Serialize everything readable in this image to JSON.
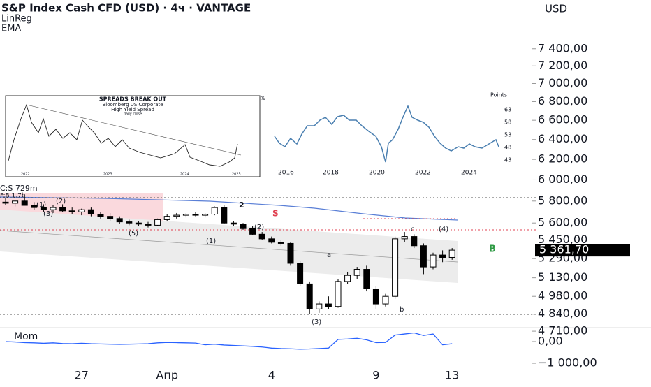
{
  "chart_data": {
    "type": "candlestick",
    "title": "S&P Index Cash CFD (USD) · 4ч · VANTAGE",
    "indicators": [
      "LinReg",
      "EMA"
    ],
    "currency": "USD",
    "log_scale": true,
    "categories": [
      null,
      null,
      null,
      null,
      null,
      null,
      null,
      null,
      "27",
      null,
      null,
      null,
      null,
      null,
      null,
      null,
      null,
      "Апр",
      null,
      null,
      null,
      null,
      null,
      null,
      null,
      null,
      null,
      null,
      "4",
      null,
      null,
      null,
      null,
      null,
      null,
      null,
      null,
      null,
      null,
      "9",
      null,
      null,
      null,
      null,
      null,
      null,
      null,
      "13"
    ],
    "open": [
      5790,
      5780,
      5800,
      5760,
      5740,
      5720,
      5740,
      5710,
      5700,
      5720,
      5680,
      5660,
      5640,
      5610,
      5600,
      5590,
      5580,
      5630,
      5660,
      5670,
      5680,
      5670,
      5680,
      5740,
      5600,
      5590,
      5550,
      5500,
      5460,
      5430,
      5420,
      5250,
      5080,
      4880,
      4920,
      4900,
      5100,
      5150,
      5200,
      5040,
      4920,
      4980,
      5460,
      5480,
      5400,
      5220,
      5320,
      5300
    ],
    "high": [
      5830,
      5810,
      5840,
      5790,
      5770,
      5760,
      5770,
      5740,
      5730,
      5740,
      5700,
      5690,
      5660,
      5630,
      5620,
      5610,
      5640,
      5680,
      5690,
      5690,
      5700,
      5690,
      5750,
      5760,
      5620,
      5600,
      5570,
      5520,
      5480,
      5450,
      5430,
      5270,
      5100,
      4940,
      4980,
      5120,
      5180,
      5220,
      5230,
      5060,
      5000,
      5480,
      5520,
      5500,
      5420,
      5340,
      5360,
      5380
    ],
    "low": [
      5760,
      5750,
      5770,
      5720,
      5700,
      5690,
      5700,
      5680,
      5670,
      5660,
      5640,
      5620,
      5590,
      5580,
      5570,
      5560,
      5570,
      5620,
      5640,
      5650,
      5660,
      5650,
      5670,
      5590,
      5570,
      5540,
      5490,
      5450,
      5420,
      5400,
      5230,
      5060,
      4840,
      4850,
      4880,
      4890,
      5080,
      5120,
      5020,
      4880,
      4900,
      4960,
      5430,
      5380,
      5160,
      5200,
      5260,
      5280
    ],
    "close": [
      5780,
      5800,
      5760,
      5740,
      5720,
      5740,
      5710,
      5700,
      5720,
      5680,
      5660,
      5640,
      5610,
      5600,
      5590,
      5580,
      5630,
      5660,
      5670,
      5680,
      5670,
      5680,
      5740,
      5600,
      5590,
      5550,
      5500,
      5460,
      5430,
      5420,
      5250,
      5080,
      4880,
      4920,
      4900,
      5100,
      5150,
      5200,
      5040,
      4920,
      4980,
      5460,
      5480,
      5400,
      5220,
      5320,
      5300,
      5361.7
    ],
    "last_price_label": "5 361,70",
    "ylim": [
      4700,
      8000
    ],
    "yticks": [
      {
        "value": 7400,
        "label": "7 400,00"
      },
      {
        "value": 7200,
        "label": "7 200,00"
      },
      {
        "value": 7000,
        "label": "7 000,00"
      },
      {
        "value": 6800,
        "label": "6 800,00"
      },
      {
        "value": 6600,
        "label": "6 600,00"
      },
      {
        "value": 6400,
        "label": "6 400,00"
      },
      {
        "value": 6200,
        "label": "6 200,00"
      },
      {
        "value": 6000,
        "label": "6 000,00"
      },
      {
        "value": 5800,
        "label": "5 800,00"
      },
      {
        "value": 5600,
        "label": "5 600,00"
      },
      {
        "value": 5450,
        "label": "5 450,00"
      },
      {
        "value": 5290,
        "label": "5 290,00"
      },
      {
        "value": 5130,
        "label": "5 130,00"
      },
      {
        "value": 4980,
        "label": "4 980,00"
      },
      {
        "value": 4840,
        "label": "4 840,00"
      },
      {
        "value": 4710,
        "label": "4 710,00"
      }
    ],
    "momentum": {
      "name": "Mom",
      "color": "#2962ff",
      "values": [
        0,
        -20,
        -50,
        -60,
        -80,
        -60,
        -90,
        -100,
        -80,
        -100,
        -110,
        -120,
        -130,
        -120,
        -110,
        -100,
        -60,
        -40,
        -50,
        -60,
        -70,
        -150,
        -120,
        -160,
        -180,
        -200,
        -220,
        -250,
        -300,
        -320,
        -330,
        -350,
        -340,
        -320,
        -300,
        100,
        120,
        150,
        80,
        -50,
        -40,
        300,
        350,
        400,
        280,
        350,
        -150,
        -100
      ],
      "y2lim": [
        -1320,
        610
      ],
      "y2ticks": [
        {
          "value": 0,
          "label": "0,00"
        },
        {
          "value": -1000,
          "label": "−1 000,00"
        }
      ]
    },
    "annotations": {
      "volume": "C:S 729m",
      "fib": "F:B 1.7b",
      "w1a": "(1)",
      "w2a": "(2)",
      "w3a": "(3)",
      "w5": "(5)",
      "w1b": "(1)",
      "w2b": "(2)",
      "w2": "2",
      "s": "S",
      "a": "a",
      "w3b": "(3)",
      "b": "b",
      "c": "c",
      "w4": "(4)",
      "B": "B"
    },
    "insets": {
      "title": "SPREADS BREAK OUT",
      "sub1": "Bloomberg US Corporate",
      "sub2": "High Yield Spread",
      "sub3": "daily close",
      "unit": "%",
      "years1": [
        "2022",
        "2023",
        "2024",
        "2025"
      ],
      "right_label": "Points",
      "points": [
        "63",
        "58",
        "53",
        "48",
        "43"
      ],
      "years2": [
        "2016",
        "2018",
        "2020",
        "2022",
        "2024"
      ]
    }
  }
}
